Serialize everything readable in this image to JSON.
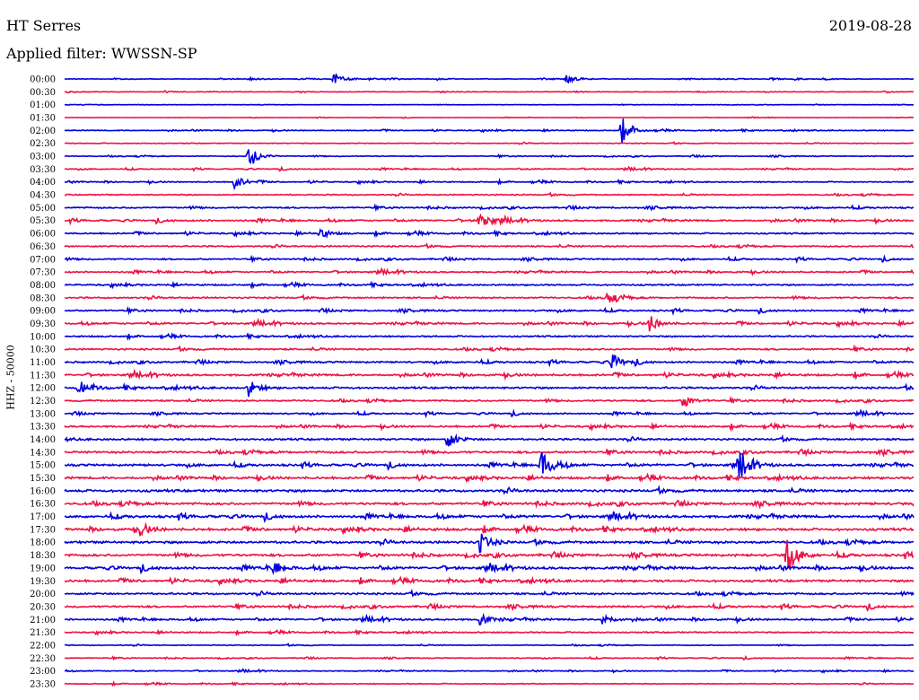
{
  "header": {
    "station": "HT Serres",
    "date": "2019-08-28",
    "filter": "Applied filter: WWSSN-SP",
    "vertical_label": "HHZ - 50000"
  },
  "colors": {
    "even": "#0000dd",
    "odd": "#ee1144"
  },
  "chart_data": {
    "type": "line",
    "title": "HT Serres",
    "date": "2019-08-28",
    "filter": "WWSSN-SP",
    "channel_label": "HHZ - 50000",
    "x_unit": "seconds within 30-minute row",
    "row_labels": [
      "00:00",
      "00:30",
      "01:00",
      "01:30",
      "02:00",
      "02:30",
      "03:00",
      "03:30",
      "04:00",
      "04:30",
      "05:00",
      "05:30",
      "06:00",
      "06:30",
      "07:00",
      "07:30",
      "08:00",
      "08:30",
      "09:00",
      "09:30",
      "10:00",
      "10:30",
      "11:00",
      "11:30",
      "12:00",
      "12:30",
      "13:00",
      "13:30",
      "14:00",
      "14:30",
      "15:00",
      "15:30",
      "16:00",
      "16:30",
      "17:00",
      "17:30",
      "18:00",
      "18:30",
      "19:00",
      "19:30",
      "20:00",
      "20:30",
      "21:00",
      "21:30",
      "22:00",
      "22:30",
      "23:00",
      "23:30"
    ],
    "noise_level": [
      0.3,
      0.25,
      0.15,
      0.15,
      0.35,
      0.35,
      0.35,
      0.4,
      0.45,
      0.5,
      0.6,
      0.65,
      0.6,
      0.6,
      0.6,
      0.6,
      0.6,
      0.65,
      0.65,
      0.7,
      0.6,
      0.7,
      0.7,
      0.8,
      0.8,
      0.7,
      0.6,
      0.7,
      0.8,
      0.9,
      0.9,
      0.9,
      1.0,
      1.0,
      1.0,
      1.0,
      1.0,
      1.0,
      1.0,
      0.9,
      0.8,
      0.8,
      0.7,
      0.5,
      0.35,
      0.35,
      0.35,
      0.35
    ],
    "events": [
      {
        "row": 0,
        "t": 570,
        "amp": 6
      },
      {
        "row": 0,
        "t": 1060,
        "amp": 6
      },
      {
        "row": 4,
        "t": 1180,
        "amp": 16
      },
      {
        "row": 6,
        "t": 390,
        "amp": 14
      },
      {
        "row": 8,
        "t": 360,
        "amp": 8
      },
      {
        "row": 11,
        "t": 880,
        "amp": 13
      },
      {
        "row": 12,
        "t": 540,
        "amp": 6
      },
      {
        "row": 13,
        "t": 1800,
        "amp": 9
      },
      {
        "row": 17,
        "t": 1150,
        "amp": 9
      },
      {
        "row": 19,
        "t": 1240,
        "amp": 10
      },
      {
        "row": 22,
        "t": 1160,
        "amp": 9
      },
      {
        "row": 24,
        "t": 30,
        "amp": 8
      },
      {
        "row": 24,
        "t": 390,
        "amp": 9
      },
      {
        "row": 25,
        "t": 1310,
        "amp": 8
      },
      {
        "row": 28,
        "t": 810,
        "amp": 10
      },
      {
        "row": 30,
        "t": 1010,
        "amp": 18
      },
      {
        "row": 30,
        "t": 1430,
        "amp": 16
      },
      {
        "row": 35,
        "t": 160,
        "amp": 7
      },
      {
        "row": 36,
        "t": 880,
        "amp": 12
      },
      {
        "row": 37,
        "t": 1530,
        "amp": 20
      },
      {
        "row": 38,
        "t": 440,
        "amp": 8
      },
      {
        "row": 42,
        "t": 880,
        "amp": 6
      },
      {
        "row": 42,
        "t": 1140,
        "amp": 6
      }
    ]
  }
}
